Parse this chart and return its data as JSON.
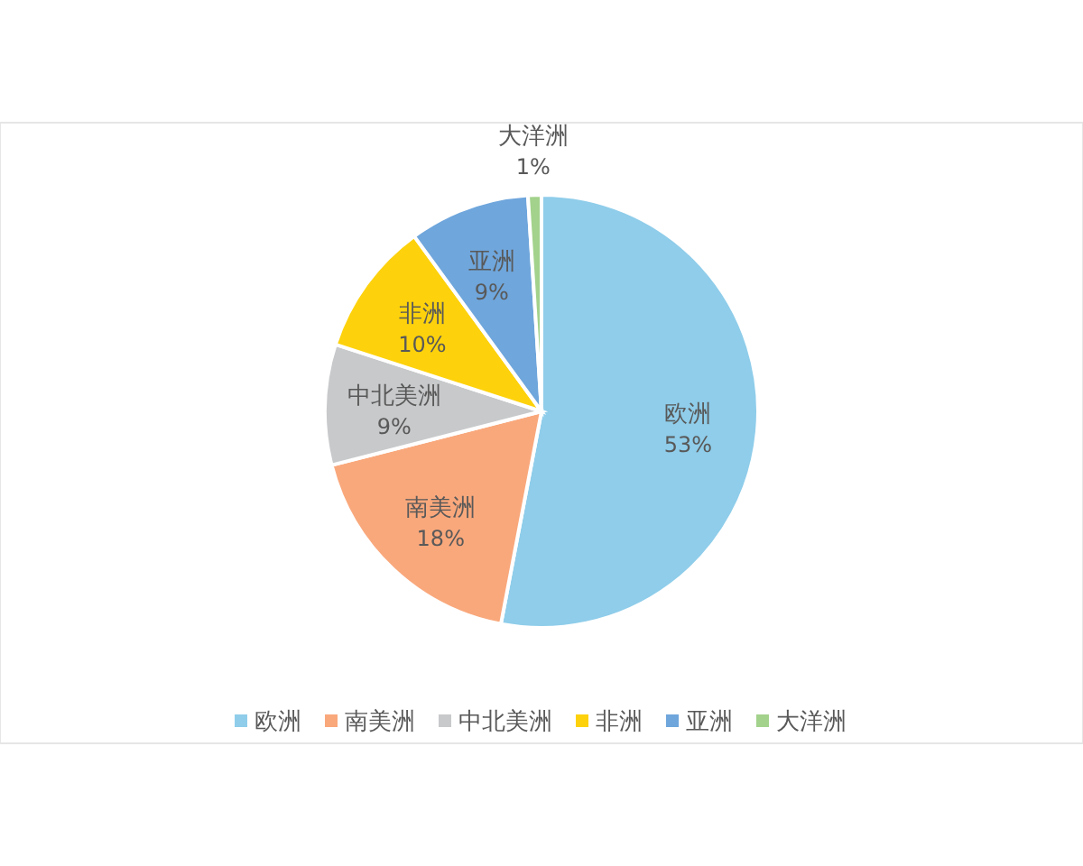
{
  "chart_data": {
    "type": "pie",
    "categories": [
      "欧洲",
      "南美洲",
      "中北美洲",
      "非洲",
      "亚洲",
      "大洋洲"
    ],
    "values": [
      53,
      18,
      9,
      10,
      9,
      1
    ],
    "colors": [
      "#8fcdea",
      "#f9a87c",
      "#c8c9cb",
      "#fdd20c",
      "#6fa6dc",
      "#a3d28c"
    ],
    "value_labels": [
      "53%",
      "18%",
      "9%",
      "10%",
      "9%",
      "1%"
    ],
    "legend": "bottom"
  }
}
